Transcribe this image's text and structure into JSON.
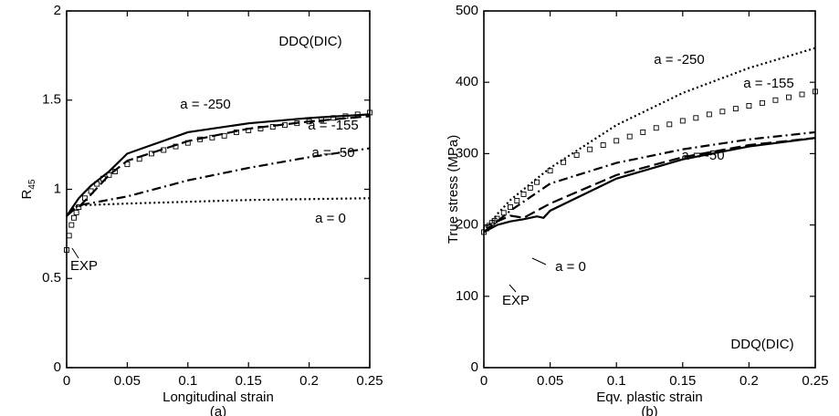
{
  "chart_data": [
    {
      "type": "line",
      "title": "DDQ(DIC)",
      "xlabel": "Longitudinal strain",
      "ylabel": "R",
      "ylabel_sub": "45",
      "caption": "(a)",
      "xlim": [
        0,
        0.25
      ],
      "ylim": [
        0,
        2
      ],
      "xticks": [
        0,
        0.05,
        0.1,
        0.15,
        0.2,
        0.25
      ],
      "yticks": [
        0,
        0.5,
        1,
        1.5,
        2
      ],
      "series": [
        {
          "name": "a = -250",
          "style": "solid",
          "color": "#000",
          "x": [
            0,
            0.005,
            0.01,
            0.02,
            0.035,
            0.05,
            0.1,
            0.15,
            0.2,
            0.25
          ],
          "values": [
            0.85,
            0.9,
            0.95,
            1.02,
            1.1,
            1.2,
            1.32,
            1.37,
            1.4,
            1.42
          ]
        },
        {
          "name": "a = -155",
          "style": "dashed",
          "color": "#000",
          "x": [
            0,
            0.005,
            0.01,
            0.02,
            0.035,
            0.05,
            0.1,
            0.15,
            0.2,
            0.25
          ],
          "values": [
            0.85,
            0.88,
            0.9,
            0.97,
            1.08,
            1.16,
            1.27,
            1.34,
            1.38,
            1.41
          ]
        },
        {
          "name": "a = -50",
          "style": "dash-dot",
          "color": "#000",
          "x": [
            0,
            0.005,
            0.01,
            0.05,
            0.1,
            0.15,
            0.2,
            0.25
          ],
          "values": [
            0.85,
            0.89,
            0.91,
            0.96,
            1.05,
            1.12,
            1.18,
            1.23
          ]
        },
        {
          "name": "a = 0",
          "style": "dotted",
          "color": "#000",
          "x": [
            0,
            0.005,
            0.01,
            0.05,
            0.1,
            0.15,
            0.2,
            0.25
          ],
          "values": [
            0.85,
            0.89,
            0.91,
            0.92,
            0.93,
            0.94,
            0.945,
            0.95
          ]
        },
        {
          "name": "EXP",
          "style": "markers",
          "color": "#000",
          "x": [
            0,
            0.002,
            0.004,
            0.006,
            0.008,
            0.01,
            0.015,
            0.02,
            0.025,
            0.03,
            0.035,
            0.04,
            0.05,
            0.06,
            0.07,
            0.08,
            0.09,
            0.1,
            0.11,
            0.12,
            0.13,
            0.14,
            0.15,
            0.16,
            0.17,
            0.18,
            0.19,
            0.2,
            0.21,
            0.22,
            0.23,
            0.24,
            0.25
          ],
          "values": [
            0.66,
            0.74,
            0.8,
            0.84,
            0.87,
            0.9,
            0.95,
            0.99,
            1.03,
            1.06,
            1.08,
            1.1,
            1.14,
            1.17,
            1.2,
            1.22,
            1.24,
            1.26,
            1.28,
            1.29,
            1.3,
            1.32,
            1.33,
            1.34,
            1.35,
            1.36,
            1.37,
            1.38,
            1.39,
            1.4,
            1.41,
            1.42,
            1.43
          ]
        }
      ]
    },
    {
      "type": "line",
      "title": "DDQ(DIC)",
      "xlabel": "Eqv. plastic strain",
      "ylabel": "True stress (MPa)",
      "caption": "(b)",
      "xlim": [
        0,
        0.25
      ],
      "ylim": [
        0,
        500
      ],
      "xticks": [
        0,
        0.05,
        0.1,
        0.15,
        0.2,
        0.25
      ],
      "yticks": [
        0,
        100,
        200,
        300,
        400,
        500
      ],
      "series": [
        {
          "name": "a = -250",
          "style": "solid",
          "color": "#000",
          "x": [
            0,
            0.01,
            0.02,
            0.03,
            0.04,
            0.045,
            0.05,
            0.1,
            0.15,
            0.2,
            0.25
          ],
          "values": [
            190,
            200,
            205,
            208,
            212,
            210,
            220,
            265,
            292,
            310,
            322
          ]
        },
        {
          "name": "a = -155",
          "style": "dashed",
          "color": "#000",
          "x": [
            0,
            0.01,
            0.02,
            0.03,
            0.05,
            0.1,
            0.15,
            0.2,
            0.25
          ],
          "values": [
            190,
            205,
            213,
            210,
            230,
            270,
            295,
            312,
            322
          ]
        },
        {
          "name": "a = -50",
          "style": "dash-dot",
          "color": "#000",
          "x": [
            0,
            0.01,
            0.02,
            0.05,
            0.1,
            0.15,
            0.2,
            0.25
          ],
          "values": [
            190,
            205,
            220,
            258,
            287,
            306,
            320,
            330
          ]
        },
        {
          "name": "a = 0",
          "style": "dotted",
          "color": "#000",
          "x": [
            0,
            0.01,
            0.02,
            0.05,
            0.1,
            0.15,
            0.2,
            0.25
          ],
          "values": [
            190,
            215,
            235,
            280,
            340,
            385,
            420,
            448
          ]
        },
        {
          "name": "EXP",
          "style": "markers",
          "color": "#000",
          "x": [
            0,
            0.002,
            0.004,
            0.006,
            0.008,
            0.01,
            0.015,
            0.02,
            0.025,
            0.03,
            0.035,
            0.04,
            0.05,
            0.06,
            0.07,
            0.08,
            0.09,
            0.1,
            0.11,
            0.12,
            0.13,
            0.14,
            0.15,
            0.16,
            0.17,
            0.18,
            0.19,
            0.2,
            0.21,
            0.22,
            0.23,
            0.24,
            0.25
          ],
          "values": [
            190,
            195,
            199,
            203,
            206,
            209,
            217,
            225,
            234,
            243,
            252,
            260,
            276,
            288,
            298,
            306,
            312,
            318,
            324,
            330,
            336,
            341,
            346,
            350,
            355,
            359,
            363,
            367,
            371,
            375,
            379,
            383,
            387
          ]
        }
      ]
    }
  ]
}
